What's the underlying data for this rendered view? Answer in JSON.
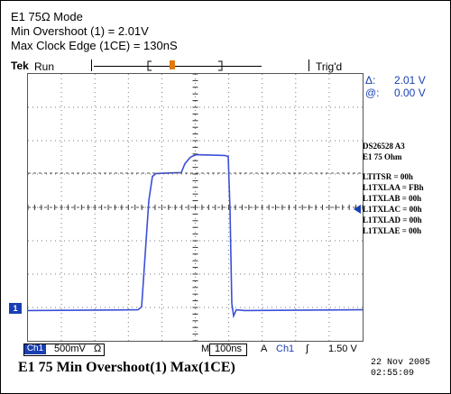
{
  "header": {
    "line1": "E1 75Ω Mode",
    "line2": "Min Overshoot (1) = 2.01V",
    "line3": "Max Clock Edge (1CE) = 130nS"
  },
  "scope": {
    "brand": "Tek",
    "run_state": "Run",
    "trig_state": "Trig'd",
    "trigger_marker": "T",
    "cursor_delta_label": "Δ:",
    "cursor_delta_value": "2.01 V",
    "cursor_at_label": "@:",
    "cursor_at_value": "0.00 V",
    "channel_marker": "1"
  },
  "info": {
    "line1": "DS26528 A3",
    "line2": "E1 75 Ohm",
    "registers": [
      "LTITSR = 00h",
      "L1TXLAA = FBh",
      "L1TXLAB = 00h",
      "L1TXLAC = 00h",
      "L1TXLAD = 00h",
      "L1TXLAE = 00h"
    ]
  },
  "status_bar": {
    "channel": "Ch1",
    "volts_div": "500mV",
    "ohm": "Ω",
    "time_mode": "M",
    "time_div": "100ns",
    "trig_mode": "A",
    "trig_channel": "Ch1",
    "trig_slope": "∫",
    "trig_level": "1.50 V"
  },
  "footer": {
    "title": "E1 75 Min Overshoot(1)  Max(1CE)",
    "date": "22 Nov 2005",
    "time": "02:55:09"
  },
  "colors": {
    "trace": "#3a4fd8",
    "accent_blue": "#1a3fb4",
    "trigger_orange": "#e07a10"
  }
}
